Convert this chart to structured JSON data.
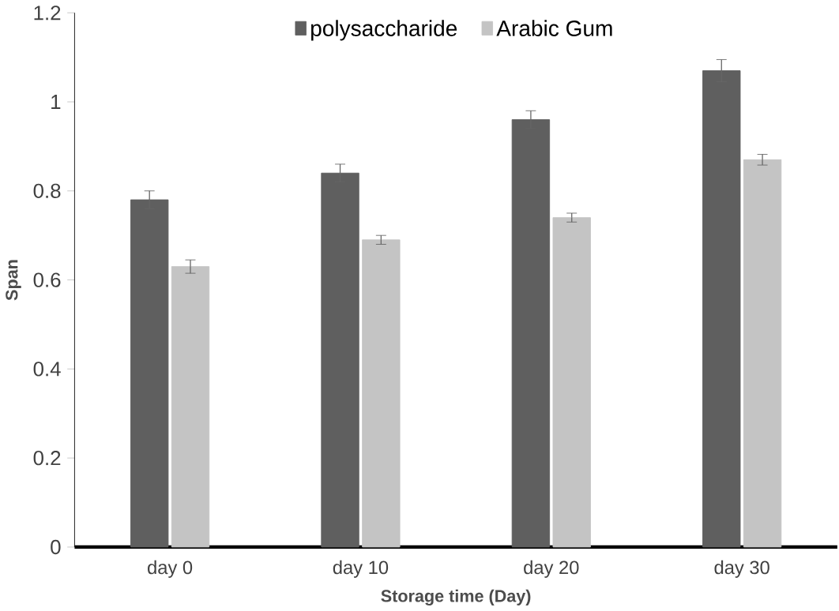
{
  "chart_data": {
    "type": "bar",
    "xlabel": "Storage time (Day)",
    "ylabel": "Span",
    "categories": [
      "day 0",
      "day 10",
      "day 20",
      "day 30"
    ],
    "series": [
      {
        "name": "polysaccharide",
        "color": "#5f5f5f",
        "values": [
          0.78,
          0.84,
          0.96,
          1.07
        ],
        "errors": [
          0.02,
          0.02,
          0.02,
          0.025
        ]
      },
      {
        "name": "Arabic Gum",
        "color": "#c4c4c4",
        "values": [
          0.63,
          0.69,
          0.74,
          0.87
        ],
        "errors": [
          0.015,
          0.01,
          0.01,
          0.012
        ]
      }
    ],
    "ylim": [
      0,
      1.2
    ],
    "yticks": [
      0,
      0.2,
      0.4,
      0.6,
      0.8,
      1,
      1.2
    ],
    "grid": false,
    "legend": "top"
  }
}
